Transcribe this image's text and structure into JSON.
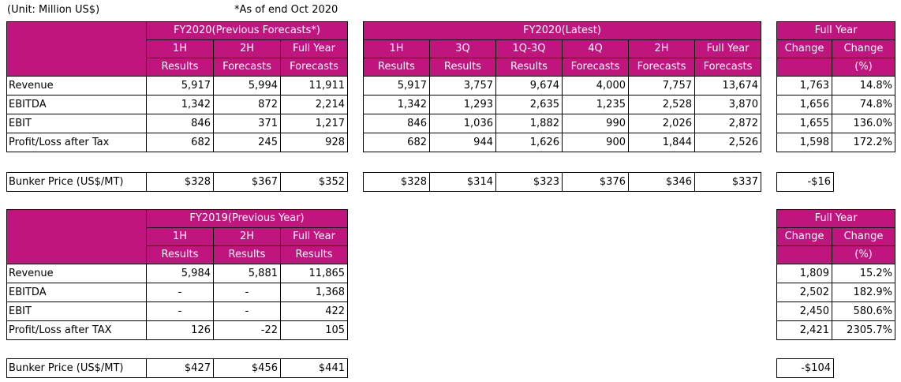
{
  "unit_note": "(Unit: Million US$)",
  "asof_note": "*As of end Oct 2020",
  "fy2020": {
    "prev_title": "FY2020(Previous Forecasts*)",
    "prev_cols": [
      [
        "1H",
        "Results"
      ],
      [
        "2H",
        "Forecasts"
      ],
      [
        "Full Year",
        "Forecasts"
      ]
    ],
    "latest_title": "FY2020(Latest)",
    "latest_cols": [
      [
        "1H",
        "Results"
      ],
      [
        "3Q",
        "Results"
      ],
      [
        "1Q-3Q",
        "Results"
      ],
      [
        "4Q",
        "Forecasts"
      ],
      [
        "2H",
        "Forecasts"
      ],
      [
        "Full Year",
        "Forecasts"
      ]
    ],
    "change_title": "Full Year",
    "change_cols": [
      [
        "Change",
        ""
      ],
      [
        "Change",
        "(%)"
      ]
    ],
    "rows": [
      {
        "label": "Revenue",
        "prev": [
          "5,917",
          "5,994",
          "11,911"
        ],
        "latest": [
          "5,917",
          "3,757",
          "9,674",
          "4,000",
          "7,757",
          "13,674"
        ],
        "change": [
          "1,763",
          "14.8%"
        ]
      },
      {
        "label": "EBITDA",
        "prev": [
          "1,342",
          "872",
          "2,214"
        ],
        "latest": [
          "1,342",
          "1,293",
          "2,635",
          "1,235",
          "2,528",
          "3,870"
        ],
        "change": [
          "1,656",
          "74.8%"
        ]
      },
      {
        "label": "EBIT",
        "prev": [
          "846",
          "371",
          "1,217"
        ],
        "latest": [
          "846",
          "1,036",
          "1,882",
          "990",
          "2,026",
          "2,872"
        ],
        "change": [
          "1,655",
          "136.0%"
        ]
      },
      {
        "label": "Profit/Loss after Tax",
        "prev": [
          "682",
          "245",
          "928"
        ],
        "latest": [
          "682",
          "944",
          "1,626",
          "900",
          "1,844",
          "2,526"
        ],
        "change": [
          "1,598",
          "172.2%"
        ]
      }
    ],
    "bunker": {
      "label": "Bunker Price (US$/MT)",
      "prev": [
        "$328",
        "$367",
        "$352"
      ],
      "latest": [
        "$328",
        "$314",
        "$323",
        "$376",
        "$346",
        "$337"
      ],
      "change": "-$16"
    }
  },
  "fy2019": {
    "title": "FY2019(Previous Year)",
    "cols": [
      [
        "1H",
        "Results"
      ],
      [
        "2H",
        "Results"
      ],
      [
        "Full Year",
        "Results"
      ]
    ],
    "change_title": "Full Year",
    "change_cols": [
      [
        "Change",
        ""
      ],
      [
        "Change",
        "(%)"
      ]
    ],
    "rows": [
      {
        "label": "Revenue",
        "vals": [
          "5,984",
          "5,881",
          "11,865"
        ],
        "change": [
          "1,809",
          "15.2%"
        ]
      },
      {
        "label": "EBITDA",
        "vals": [
          "-",
          "-",
          "1,368"
        ],
        "change": [
          "2,502",
          "182.9%"
        ]
      },
      {
        "label": "EBIT",
        "vals": [
          "-",
          "-",
          "422"
        ],
        "change": [
          "2,450",
          "580.6%"
        ]
      },
      {
        "label": "Profit/Loss after TAX",
        "vals": [
          "126",
          "-22",
          "105"
        ],
        "change": [
          "2,421",
          "2305.7%"
        ]
      }
    ],
    "bunker": {
      "label": "Bunker Price (US$/MT)",
      "vals": [
        "$427",
        "$456",
        "$441"
      ],
      "change": "-$104"
    }
  }
}
